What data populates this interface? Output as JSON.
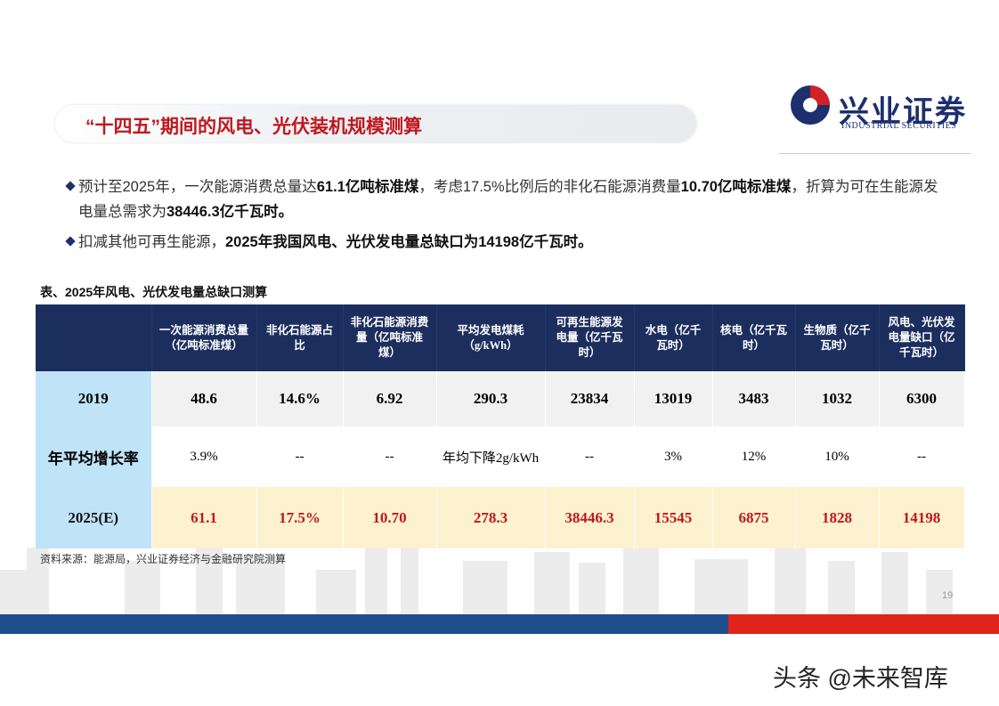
{
  "header": {
    "title": "“十四五”期间的风电、光伏装机规模测算",
    "logo_name": "兴业证券",
    "logo_sub": "INDUSTRIAL SECURITIES"
  },
  "bullets": [
    [
      {
        "text": "预计至2025年，一次能源消费总量达",
        "bold": false
      },
      {
        "text": "61.1亿吨标准煤",
        "bold": true
      },
      {
        "text": "，考虑17.5%比例后的非化石能源消费量",
        "bold": false
      },
      {
        "text": "10.70亿吨标准煤",
        "bold": true
      },
      {
        "text": "，折算为可在生能源发电量总需求为",
        "bold": false
      },
      {
        "text": "38446.3亿千瓦时。",
        "bold": true
      }
    ],
    [
      {
        "text": "扣减其他可再生能源，",
        "bold": false
      },
      {
        "text": "2025年我国风电、光伏发电量总缺口为14198亿千瓦时。",
        "bold": true
      }
    ]
  ],
  "table": {
    "caption": "表、2025年风电、光伏发电量总缺口测算",
    "columns": [
      null,
      "一次能源消费总量（亿吨标准煤）",
      "非化石能源占比",
      "非化石能源消费量（亿吨标准煤）",
      "平均发电煤耗（g/kWh）",
      "可再生能源发电量（亿千瓦时）",
      "水电（亿千瓦时）",
      "核电（亿千瓦时）",
      "生物质（亿千瓦时）",
      "风电、光伏发电量缺口（亿千瓦时）"
    ],
    "rows": [
      [
        "2019",
        "48.6",
        "14.6%",
        "6.92",
        "290.3",
        "23834",
        "13019",
        "3483",
        "1032",
        "6300"
      ],
      [
        "年平均增长率",
        "3.9%",
        "--",
        "--",
        "年均下降2g/kWh",
        "--",
        "3%",
        "12%",
        "10%",
        "--"
      ],
      [
        "2025(E)",
        "61.1",
        "17.5%",
        "10.70",
        "278.3",
        "38446.3",
        "15545",
        "6875",
        "1828",
        "14198"
      ]
    ]
  },
  "source": "资料来源：能源局，兴业证券经济与金融研究院测算",
  "page_number": "19",
  "watermark": "头条 @未来智库"
}
